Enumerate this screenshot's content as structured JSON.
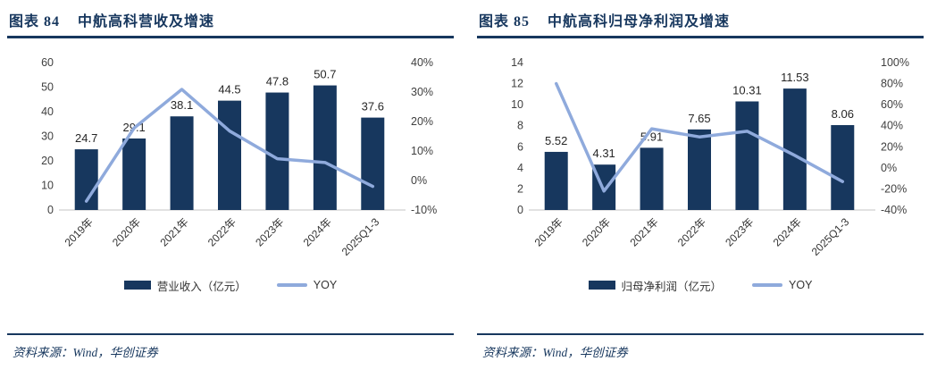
{
  "colors": {
    "bar": "#17375E",
    "line": "#8FAADC",
    "title": "#17375E",
    "axis_text": "#404040",
    "axis_line": "#D9D9D9",
    "data_label": "#262626",
    "source_text": "#17375E"
  },
  "figures": [
    {
      "figure_label": "图表 84",
      "title": "中航高科营收及增速",
      "legend": {
        "bar_label": "营业收入（亿元）",
        "line_label": "YOY"
      },
      "source": "资料来源：Wind，华创证券"
    },
    {
      "figure_label": "图表 85",
      "title": "中航高科归母净利润及增速",
      "legend": {
        "bar_label": "归母净利润（亿元）",
        "line_label": "YOY"
      },
      "source": "资料来源：Wind，华创证券"
    }
  ],
  "chart_data": [
    {
      "type": "combo_bar_line",
      "title": "中航高科营收及增速",
      "categories": [
        "2019年",
        "2020年",
        "2021年",
        "2022年",
        "2023年",
        "2024年",
        "2025Q1-3"
      ],
      "series": [
        {
          "name": "营业收入（亿元）",
          "type": "bar",
          "axis": "left",
          "values": [
            24.7,
            29.1,
            38.1,
            44.5,
            47.8,
            50.7,
            37.6
          ],
          "labels": [
            "24.7",
            "29.1",
            "38.1",
            "44.5",
            "47.8",
            "50.7",
            "37.6"
          ]
        },
        {
          "name": "YOY",
          "type": "line",
          "axis": "right",
          "values": [
            -7,
            17.8,
            30.9,
            16.8,
            7.4,
            6.1,
            -2
          ]
        }
      ],
      "left_axis": {
        "min": 0,
        "max": 60,
        "ticks": [
          0,
          10,
          20,
          30,
          40,
          50,
          60
        ],
        "suffix": ""
      },
      "right_axis": {
        "min": -10,
        "max": 40,
        "ticks": [
          -10,
          0,
          10,
          20,
          30,
          40
        ],
        "suffix": "%"
      },
      "grid": false,
      "legend_position": "bottom"
    },
    {
      "type": "combo_bar_line",
      "title": "中航高科归母净利润及增速",
      "categories": [
        "2019年",
        "2020年",
        "2021年",
        "2022年",
        "2023年",
        "2024年",
        "2025Q1-3"
      ],
      "series": [
        {
          "name": "归母净利润（亿元）",
          "type": "bar",
          "axis": "left",
          "values": [
            5.52,
            4.31,
            5.91,
            7.65,
            10.31,
            11.53,
            8.06
          ],
          "labels": [
            "5.52",
            "4.31",
            "5.91",
            "7.65",
            "10.31",
            "11.53",
            "8.06"
          ]
        },
        {
          "name": "YOY",
          "type": "line",
          "axis": "right",
          "values": [
            80,
            -22,
            37.1,
            29.4,
            34.8,
            11.8,
            -13
          ]
        }
      ],
      "left_axis": {
        "min": 0,
        "max": 14,
        "ticks": [
          0,
          2,
          4,
          6,
          8,
          10,
          12,
          14
        ],
        "suffix": ""
      },
      "right_axis": {
        "min": -40,
        "max": 100,
        "ticks": [
          -40,
          -20,
          0,
          20,
          40,
          60,
          80,
          100
        ],
        "suffix": "%"
      },
      "grid": false,
      "legend_position": "bottom"
    }
  ]
}
